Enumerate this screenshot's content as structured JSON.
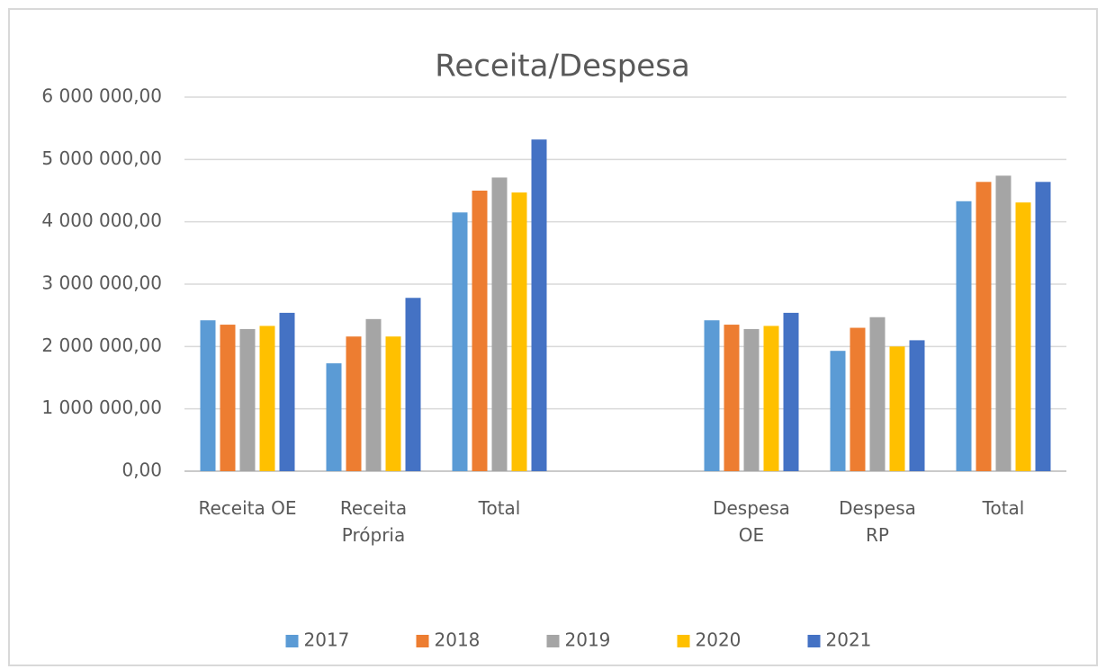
{
  "chart_data": {
    "type": "bar",
    "title": "Receita/Despesa",
    "categories": [
      "Receita OE",
      "Receita\nPrópria",
      "Total",
      null,
      "Despesa\nOE",
      "Despesa\nRP",
      "Total"
    ],
    "series": [
      {
        "name": "2017",
        "color": "#5b9bd5",
        "values": [
          2420000,
          1730000,
          4150000,
          null,
          2420000,
          1930000,
          4330000
        ]
      },
      {
        "name": "2018",
        "color": "#ed7d31",
        "values": [
          2350000,
          2160000,
          4500000,
          null,
          2350000,
          2300000,
          4640000
        ]
      },
      {
        "name": "2019",
        "color": "#a5a5a5",
        "values": [
          2280000,
          2440000,
          4710000,
          null,
          2280000,
          2470000,
          4740000
        ]
      },
      {
        "name": "2020",
        "color": "#ffc000",
        "values": [
          2330000,
          2160000,
          4470000,
          null,
          2330000,
          2000000,
          4310000
        ]
      },
      {
        "name": "2021",
        "color": "#4472c4",
        "values": [
          2540000,
          2780000,
          5320000,
          null,
          2540000,
          2100000,
          4640000
        ]
      }
    ],
    "ylim": [
      0,
      6000000
    ],
    "yticks": [
      {
        "value": 0,
        "label": "0,00"
      },
      {
        "value": 1000000,
        "label": "1 000 000,00"
      },
      {
        "value": 2000000,
        "label": "2 000 000,00"
      },
      {
        "value": 3000000,
        "label": "3 000 000,00"
      },
      {
        "value": 4000000,
        "label": "4 000 000,00"
      },
      {
        "value": 5000000,
        "label": "5 000 000,00"
      },
      {
        "value": 6000000,
        "label": "6 000 000,00"
      }
    ],
    "grid": true,
    "legend": "bottom"
  }
}
